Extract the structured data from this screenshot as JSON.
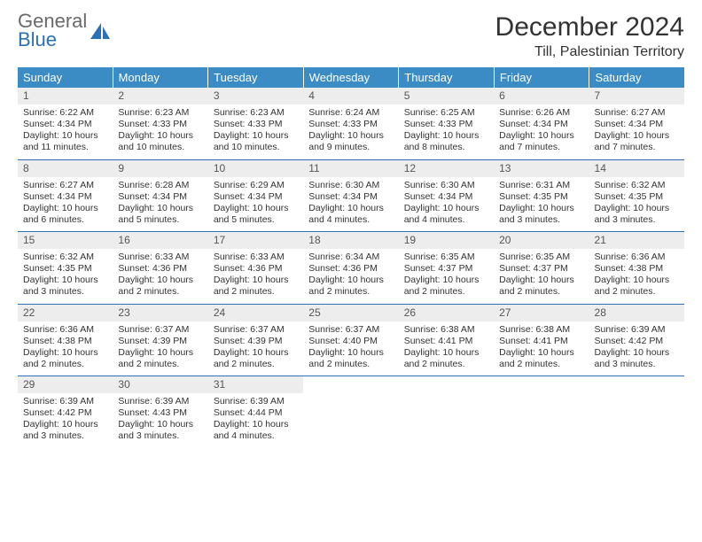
{
  "brand": {
    "line1": "General",
    "line2": "Blue"
  },
  "colors": {
    "header_bg": "#3b8bc4",
    "rule": "#2a72b5",
    "daynum_bg": "#ededed",
    "text": "#333333",
    "brand_gray": "#6a6a6a",
    "brand_blue": "#2a72b5",
    "page_bg": "#ffffff"
  },
  "typography": {
    "month_title_size_pt": 22,
    "location_size_pt": 12,
    "weekday_size_pt": 10,
    "cell_size_pt": 8
  },
  "title": "December 2024",
  "location": "Till, Palestinian Territory",
  "weekdays": [
    "Sunday",
    "Monday",
    "Tuesday",
    "Wednesday",
    "Thursday",
    "Friday",
    "Saturday"
  ],
  "weeks": [
    [
      {
        "day": "1",
        "sunrise": "Sunrise: 6:22 AM",
        "sunset": "Sunset: 4:34 PM",
        "daylight": "Daylight: 10 hours and 11 minutes."
      },
      {
        "day": "2",
        "sunrise": "Sunrise: 6:23 AM",
        "sunset": "Sunset: 4:33 PM",
        "daylight": "Daylight: 10 hours and 10 minutes."
      },
      {
        "day": "3",
        "sunrise": "Sunrise: 6:23 AM",
        "sunset": "Sunset: 4:33 PM",
        "daylight": "Daylight: 10 hours and 10 minutes."
      },
      {
        "day": "4",
        "sunrise": "Sunrise: 6:24 AM",
        "sunset": "Sunset: 4:33 PM",
        "daylight": "Daylight: 10 hours and 9 minutes."
      },
      {
        "day": "5",
        "sunrise": "Sunrise: 6:25 AM",
        "sunset": "Sunset: 4:33 PM",
        "daylight": "Daylight: 10 hours and 8 minutes."
      },
      {
        "day": "6",
        "sunrise": "Sunrise: 6:26 AM",
        "sunset": "Sunset: 4:34 PM",
        "daylight": "Daylight: 10 hours and 7 minutes."
      },
      {
        "day": "7",
        "sunrise": "Sunrise: 6:27 AM",
        "sunset": "Sunset: 4:34 PM",
        "daylight": "Daylight: 10 hours and 7 minutes."
      }
    ],
    [
      {
        "day": "8",
        "sunrise": "Sunrise: 6:27 AM",
        "sunset": "Sunset: 4:34 PM",
        "daylight": "Daylight: 10 hours and 6 minutes."
      },
      {
        "day": "9",
        "sunrise": "Sunrise: 6:28 AM",
        "sunset": "Sunset: 4:34 PM",
        "daylight": "Daylight: 10 hours and 5 minutes."
      },
      {
        "day": "10",
        "sunrise": "Sunrise: 6:29 AM",
        "sunset": "Sunset: 4:34 PM",
        "daylight": "Daylight: 10 hours and 5 minutes."
      },
      {
        "day": "11",
        "sunrise": "Sunrise: 6:30 AM",
        "sunset": "Sunset: 4:34 PM",
        "daylight": "Daylight: 10 hours and 4 minutes."
      },
      {
        "day": "12",
        "sunrise": "Sunrise: 6:30 AM",
        "sunset": "Sunset: 4:34 PM",
        "daylight": "Daylight: 10 hours and 4 minutes."
      },
      {
        "day": "13",
        "sunrise": "Sunrise: 6:31 AM",
        "sunset": "Sunset: 4:35 PM",
        "daylight": "Daylight: 10 hours and 3 minutes."
      },
      {
        "day": "14",
        "sunrise": "Sunrise: 6:32 AM",
        "sunset": "Sunset: 4:35 PM",
        "daylight": "Daylight: 10 hours and 3 minutes."
      }
    ],
    [
      {
        "day": "15",
        "sunrise": "Sunrise: 6:32 AM",
        "sunset": "Sunset: 4:35 PM",
        "daylight": "Daylight: 10 hours and 3 minutes."
      },
      {
        "day": "16",
        "sunrise": "Sunrise: 6:33 AM",
        "sunset": "Sunset: 4:36 PM",
        "daylight": "Daylight: 10 hours and 2 minutes."
      },
      {
        "day": "17",
        "sunrise": "Sunrise: 6:33 AM",
        "sunset": "Sunset: 4:36 PM",
        "daylight": "Daylight: 10 hours and 2 minutes."
      },
      {
        "day": "18",
        "sunrise": "Sunrise: 6:34 AM",
        "sunset": "Sunset: 4:36 PM",
        "daylight": "Daylight: 10 hours and 2 minutes."
      },
      {
        "day": "19",
        "sunrise": "Sunrise: 6:35 AM",
        "sunset": "Sunset: 4:37 PM",
        "daylight": "Daylight: 10 hours and 2 minutes."
      },
      {
        "day": "20",
        "sunrise": "Sunrise: 6:35 AM",
        "sunset": "Sunset: 4:37 PM",
        "daylight": "Daylight: 10 hours and 2 minutes."
      },
      {
        "day": "21",
        "sunrise": "Sunrise: 6:36 AM",
        "sunset": "Sunset: 4:38 PM",
        "daylight": "Daylight: 10 hours and 2 minutes."
      }
    ],
    [
      {
        "day": "22",
        "sunrise": "Sunrise: 6:36 AM",
        "sunset": "Sunset: 4:38 PM",
        "daylight": "Daylight: 10 hours and 2 minutes."
      },
      {
        "day": "23",
        "sunrise": "Sunrise: 6:37 AM",
        "sunset": "Sunset: 4:39 PM",
        "daylight": "Daylight: 10 hours and 2 minutes."
      },
      {
        "day": "24",
        "sunrise": "Sunrise: 6:37 AM",
        "sunset": "Sunset: 4:39 PM",
        "daylight": "Daylight: 10 hours and 2 minutes."
      },
      {
        "day": "25",
        "sunrise": "Sunrise: 6:37 AM",
        "sunset": "Sunset: 4:40 PM",
        "daylight": "Daylight: 10 hours and 2 minutes."
      },
      {
        "day": "26",
        "sunrise": "Sunrise: 6:38 AM",
        "sunset": "Sunset: 4:41 PM",
        "daylight": "Daylight: 10 hours and 2 minutes."
      },
      {
        "day": "27",
        "sunrise": "Sunrise: 6:38 AM",
        "sunset": "Sunset: 4:41 PM",
        "daylight": "Daylight: 10 hours and 2 minutes."
      },
      {
        "day": "28",
        "sunrise": "Sunrise: 6:39 AM",
        "sunset": "Sunset: 4:42 PM",
        "daylight": "Daylight: 10 hours and 3 minutes."
      }
    ],
    [
      {
        "day": "29",
        "sunrise": "Sunrise: 6:39 AM",
        "sunset": "Sunset: 4:42 PM",
        "daylight": "Daylight: 10 hours and 3 minutes."
      },
      {
        "day": "30",
        "sunrise": "Sunrise: 6:39 AM",
        "sunset": "Sunset: 4:43 PM",
        "daylight": "Daylight: 10 hours and 3 minutes."
      },
      {
        "day": "31",
        "sunrise": "Sunrise: 6:39 AM",
        "sunset": "Sunset: 4:44 PM",
        "daylight": "Daylight: 10 hours and 4 minutes."
      },
      null,
      null,
      null,
      null
    ]
  ]
}
